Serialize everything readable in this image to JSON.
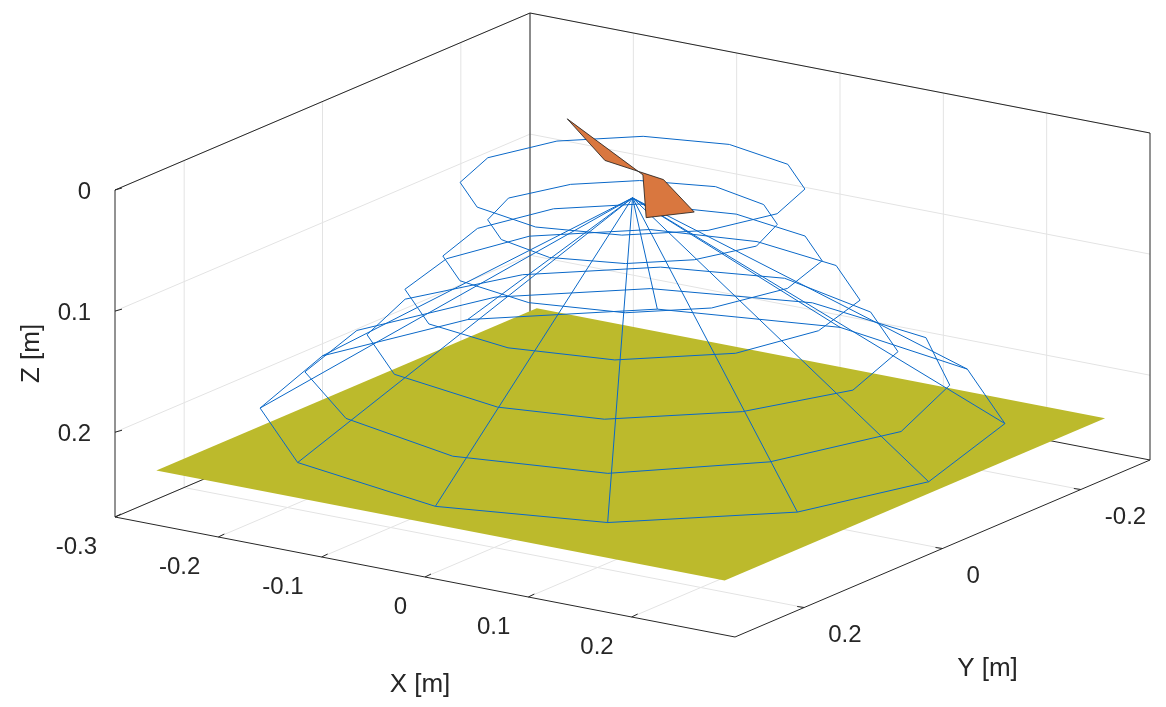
{
  "chart_data": {
    "type": "wireframe3d",
    "xlabel": "X [m]",
    "ylabel": "Y [m]",
    "zlabel": "Z [m]",
    "xlim": [
      -0.3,
      0.3
    ],
    "ylim": [
      -0.3,
      0.3
    ],
    "zlim": [
      0,
      0.27
    ],
    "xticks": [
      -0.3,
      -0.2,
      -0.1,
      0,
      0.1,
      0.2
    ],
    "yticks": [
      -0.2,
      0,
      0.2
    ],
    "zticks": [
      0,
      0.1,
      0.2
    ],
    "grid": true,
    "series": [
      {
        "type": "surface",
        "color": "#bcba2c",
        "line_style": "none",
        "x": [
          -0.26,
          0.29,
          0.29,
          -0.26,
          -0.26
        ],
        "y": [
          0.3,
          0.3,
          -0.25,
          -0.25,
          0.3
        ],
        "z": [
          0.225,
          0.225,
          0.225,
          0.225,
          0.225
        ]
      },
      {
        "type": "line",
        "color": "#0a68c8",
        "line_style": "solid",
        "x": [
          0.3,
          0.26,
          0.15,
          0.01,
          -0.15,
          -0.26,
          -0.3,
          -0.26,
          -0.15,
          0,
          0.15,
          0.26,
          0.3
        ],
        "y": [
          0.02,
          0.15,
          0.26,
          0.3,
          0.26,
          0.15,
          0,
          -0.15,
          -0.26,
          -0.3,
          -0.26,
          -0.15,
          0.02
        ],
        "z": [
          0.21,
          0.21,
          0.21,
          0.21,
          0.21,
          0.21,
          0.21,
          0.21,
          0.21,
          0.21,
          0.21,
          0.21,
          0.21
        ]
      },
      {
        "type": "line",
        "color": "#0a68c8",
        "line_style": "solid",
        "x": [
          0.26,
          0.22,
          0.13,
          0,
          -0.13,
          -0.23,
          -0.26,
          -0.22,
          -0.13,
          0,
          0.13,
          0.22,
          0.26
        ],
        "y": [
          0,
          0.13,
          0.23,
          0.26,
          0.22,
          0.13,
          0.01,
          -0.13,
          -0.22,
          -0.26,
          -0.23,
          -0.13,
          0
        ],
        "z": [
          0.18,
          0.18,
          0.18,
          0.18,
          0.18,
          0.18,
          0.18,
          0.18,
          0.18,
          0.18,
          0.18,
          0.18,
          0.18
        ]
      },
      {
        "type": "line",
        "color": "#0a68c8",
        "line_style": "solid",
        "x": [
          0.22,
          0.18,
          0.1,
          0.01,
          -0.11,
          -0.19,
          -0.22,
          -0.18,
          -0.1,
          0,
          0.11,
          0.19,
          0.22
        ],
        "y": [
          0.01,
          0.11,
          0.19,
          0.21,
          0.18,
          0.1,
          0,
          -0.11,
          -0.19,
          -0.22,
          -0.18,
          -0.1,
          0.01
        ],
        "z": [
          0.15,
          0.15,
          0.15,
          0.15,
          0.15,
          0.15,
          0.15,
          0.15,
          0.15,
          0.15,
          0.15,
          0.15,
          0.15
        ]
      },
      {
        "type": "line",
        "color": "#0a68c8",
        "line_style": "solid",
        "x": [
          0.18,
          0.16,
          0.09,
          0,
          -0.09,
          -0.16,
          -0.18,
          -0.16,
          -0.09,
          0,
          0.09,
          0.16,
          0.18
        ],
        "y": [
          0,
          0.09,
          0.16,
          0.18,
          0.16,
          0.09,
          0,
          -0.09,
          -0.16,
          -0.18,
          -0.16,
          -0.09,
          0
        ],
        "z": [
          0.11,
          0.11,
          0.11,
          0.11,
          0.11,
          0.11,
          0.11,
          0.11,
          0.11,
          0.11,
          0.11,
          0.11,
          0.11
        ]
      },
      {
        "type": "line",
        "color": "#0a68c8",
        "line_style": "solid",
        "x": [
          0.15,
          0.13,
          0.08,
          0,
          -0.08,
          -0.13,
          -0.15,
          -0.13,
          -0.08,
          0,
          0.08,
          0.13,
          0.15
        ],
        "y": [
          0,
          0.08,
          0.13,
          0.15,
          0.13,
          0.08,
          0,
          -0.08,
          -0.13,
          -0.15,
          -0.13,
          -0.08,
          0
        ],
        "z": [
          0.08,
          0.08,
          0.08,
          0.08,
          0.08,
          0.08,
          0.08,
          0.08,
          0.08,
          0.08,
          0.08,
          0.08,
          0.08
        ]
      },
      {
        "type": "line",
        "color": "#0a68c8",
        "line_style": "solid",
        "x": [
          0.12,
          0.1,
          0.06,
          0,
          -0.06,
          -0.1,
          -0.12,
          -0.1,
          -0.06,
          0,
          0.06,
          0.1,
          0.12
        ],
        "y": [
          0,
          0.06,
          0.1,
          0.12,
          0.1,
          0.06,
          0,
          -0.06,
          -0.1,
          -0.12,
          -0.1,
          -0.06,
          0
        ],
        "z": [
          0.05,
          0.05,
          0.05,
          0.05,
          0.05,
          0.05,
          0.05,
          0.05,
          0.05,
          0.05,
          0.05,
          0.05,
          0.05
        ]
      },
      {
        "type": "line",
        "color": "#0a68c8",
        "line_style": "solid",
        "x": [
          0.14,
          0.12,
          0.07,
          0,
          -0.07,
          -0.12,
          -0.14,
          -0.12,
          -0.07,
          0,
          0.07,
          0.12,
          0.14
        ],
        "y": [
          0,
          0.07,
          0.12,
          0.14,
          0.12,
          0.07,
          0,
          -0.07,
          -0.12,
          -0.14,
          -0.12,
          -0.07,
          0
        ],
        "z": [
          0.02,
          0.02,
          0.02,
          0.02,
          0.02,
          0.02,
          0.02,
          0.02,
          0.02,
          0.02,
          0.02,
          0.02,
          0.02
        ]
      },
      {
        "type": "line",
        "color": "#0a68c8",
        "line_style": "solid",
        "x": [
          0,
          0.3,
          null,
          0,
          0.26,
          null,
          0,
          0.15,
          null,
          0,
          0.01,
          null,
          0,
          -0.15,
          null,
          0,
          -0.26,
          null,
          0,
          -0.3,
          null,
          0,
          -0.26,
          null,
          0,
          -0.15,
          null,
          0,
          0,
          null,
          0,
          0.15,
          null,
          0,
          0.26
        ],
        "y": [
          0,
          0.02,
          null,
          0,
          0.15,
          null,
          0,
          0.26,
          null,
          0,
          0.3,
          null,
          0,
          0.26,
          null,
          0,
          0.15,
          null,
          0,
          0,
          null,
          0,
          -0.15,
          null,
          0,
          -0.26,
          null,
          0,
          -0.3,
          null,
          0,
          -0.26,
          null,
          0,
          -0.15
        ],
        "z": [
          0.03,
          0.21,
          null,
          0.03,
          0.21,
          null,
          0.03,
          0.21,
          null,
          0.03,
          0.21,
          null,
          0.03,
          0.21,
          null,
          0.03,
          0.21,
          null,
          0.03,
          0.21,
          null,
          0.03,
          0.21,
          null,
          0.03,
          0.21,
          null,
          0.03,
          0.21,
          null,
          0.03,
          0.21,
          null,
          0.03,
          0.21
        ]
      },
      {
        "type": "surface",
        "color": "#d9773f",
        "line_style": "solid",
        "x": [
          -0.11,
          -0.02,
          0.03,
          0.12,
          0.04,
          -0.01,
          -0.11
        ],
        "y": [
          -0.07,
          0.01,
          0.0,
          0.09,
          0.04,
          -0.03,
          -0.07
        ],
        "z": [
          0,
          0,
          0.01,
          0,
          0.03,
          0.02,
          0
        ]
      }
    ]
  }
}
